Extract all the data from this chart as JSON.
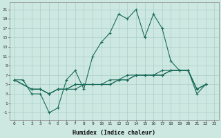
{
  "xlabel": "Humidex (Indice chaleur)",
  "background_color": "#cce8e0",
  "grid_color": "#aacfc8",
  "line_color": "#1a6b5a",
  "xlim": [
    -0.5,
    23.5
  ],
  "ylim": [
    -2.5,
    22.5
  ],
  "xticks": [
    0,
    1,
    2,
    3,
    4,
    5,
    6,
    7,
    8,
    9,
    10,
    11,
    12,
    13,
    14,
    15,
    16,
    17,
    18,
    19,
    20,
    21,
    22,
    23
  ],
  "yticks": [
    -1,
    1,
    3,
    5,
    7,
    9,
    11,
    13,
    15,
    17,
    19,
    21
  ],
  "series": [
    {
      "x": [
        0,
        1,
        2,
        3,
        4,
        5,
        6,
        7,
        8,
        9,
        10,
        11,
        12,
        13,
        14,
        15,
        16,
        17,
        18,
        19,
        20,
        21,
        22
      ],
      "y": [
        6,
        6,
        3,
        3,
        -1,
        0,
        6,
        8,
        4,
        11,
        14,
        16,
        20,
        19,
        21,
        15,
        20,
        17,
        10,
        8,
        8,
        3,
        5
      ]
    },
    {
      "x": [
        0,
        2,
        3,
        4,
        5,
        6,
        7,
        8,
        9,
        10,
        11,
        12,
        13,
        14,
        15,
        16,
        17,
        18,
        19,
        20,
        21,
        22
      ],
      "y": [
        6,
        4,
        4,
        3,
        4,
        4,
        5,
        5,
        5,
        5,
        6,
        6,
        7,
        7,
        7,
        7,
        8,
        8,
        8,
        8,
        4,
        5
      ]
    },
    {
      "x": [
        0,
        2,
        3,
        4,
        5,
        6,
        7,
        8,
        9,
        10,
        11,
        12,
        13,
        14,
        15,
        16,
        17,
        18,
        19,
        20,
        21,
        22
      ],
      "y": [
        6,
        4,
        4,
        3,
        4,
        4,
        5,
        5,
        5,
        5,
        5,
        6,
        6,
        7,
        7,
        7,
        7,
        8,
        8,
        8,
        4,
        5
      ]
    },
    {
      "x": [
        0,
        2,
        3,
        4,
        5,
        6,
        7,
        8,
        9,
        10,
        11,
        12,
        13,
        14,
        15,
        16,
        17,
        18,
        19,
        20,
        21,
        22
      ],
      "y": [
        6,
        4,
        4,
        3,
        4,
        4,
        4,
        5,
        5,
        5,
        5,
        6,
        6,
        7,
        7,
        7,
        7,
        8,
        8,
        8,
        4,
        5
      ]
    }
  ]
}
